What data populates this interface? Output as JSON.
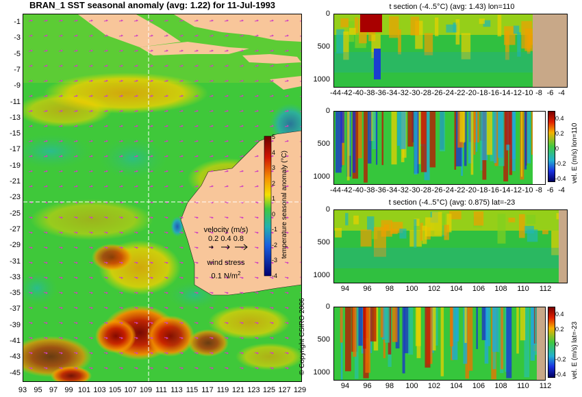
{
  "title": "BRAN_1 SST seasonal anomaly (avg: 1.22) for 11-Jul-1993",
  "map": {
    "lat_labels": [
      "-1",
      "-3",
      "-5",
      "-7",
      "-9",
      "-11",
      "-13",
      "-15",
      "-17",
      "-19",
      "-21",
      "-23",
      "-25",
      "-27",
      "-29",
      "-31",
      "-33",
      "-35",
      "-37",
      "-39",
      "-41",
      "-43",
      "-45"
    ],
    "lon_labels": [
      "93",
      "95",
      "97",
      "99",
      "101",
      "103",
      "105",
      "107",
      "109",
      "111",
      "113",
      "115",
      "117",
      "119",
      "121",
      "123",
      "125",
      "127",
      "129"
    ],
    "colorbar_label": "temperature seasonal anomaly (°C)",
    "colorbar_ticks": [
      "5",
      "4",
      "3",
      "2",
      "1",
      "0",
      "-1",
      "-2",
      "-3",
      "-4"
    ],
    "velocity_legend": {
      "title": "velocity (m/s)",
      "values": "0.2 0.4 0.8"
    },
    "wind_legend": {
      "title": "wind stress",
      "value": "0.1 N/m",
      "superscript": "2"
    },
    "copyright": "© Copyright CSIRO 2006",
    "land_color": "#f8c69a",
    "crosshair": {
      "lon": 110,
      "lat": -23
    }
  },
  "sections": [
    {
      "title": "t section (-4..5°C) (avg: 1.43) lon=110",
      "depth_labels": [
        "0",
        "500",
        "1000"
      ],
      "x_labels": [
        "-44",
        "-42",
        "-40",
        "-38",
        "-36",
        "-34",
        "-32",
        "-30",
        "-28",
        "-26",
        "-24",
        "-22",
        "-20",
        "-18",
        "-16",
        "-14",
        "-12",
        "-10",
        "-8",
        "-6",
        "-4"
      ],
      "colorbar": null
    },
    {
      "title": "",
      "depth_labels": [
        "0",
        "500",
        "1000"
      ],
      "x_labels": [
        "-44",
        "-42",
        "-40",
        "-38",
        "-36",
        "-34",
        "-32",
        "-30",
        "-28",
        "-26",
        "-24",
        "-22",
        "-20",
        "-18",
        "-16",
        "-14",
        "-12",
        "-10",
        "-8",
        "-6",
        "-4"
      ],
      "colorbar": {
        "label": "vel. E (m/s) lon=110",
        "ticks": [
          "0.4",
          "0.2",
          "0",
          "-0.2",
          "-0.4"
        ]
      }
    },
    {
      "title": "t section (-4..5°C) (avg: 0.875) lat=-23",
      "depth_labels": [
        "0",
        "500",
        "1000"
      ],
      "x_labels": [
        "94",
        "96",
        "98",
        "100",
        "102",
        "104",
        "106",
        "108",
        "110",
        "112"
      ],
      "colorbar": null
    },
    {
      "title": "",
      "depth_labels": [
        "0",
        "500",
        "1000"
      ],
      "x_labels": [
        "94",
        "96",
        "98",
        "100",
        "102",
        "104",
        "106",
        "108",
        "110",
        "112"
      ],
      "colorbar": {
        "label": "vel. E (m/s) lat=-23",
        "ticks": [
          "0.4",
          "0.2",
          "0",
          "-0.2",
          "-0.4"
        ]
      }
    }
  ]
}
